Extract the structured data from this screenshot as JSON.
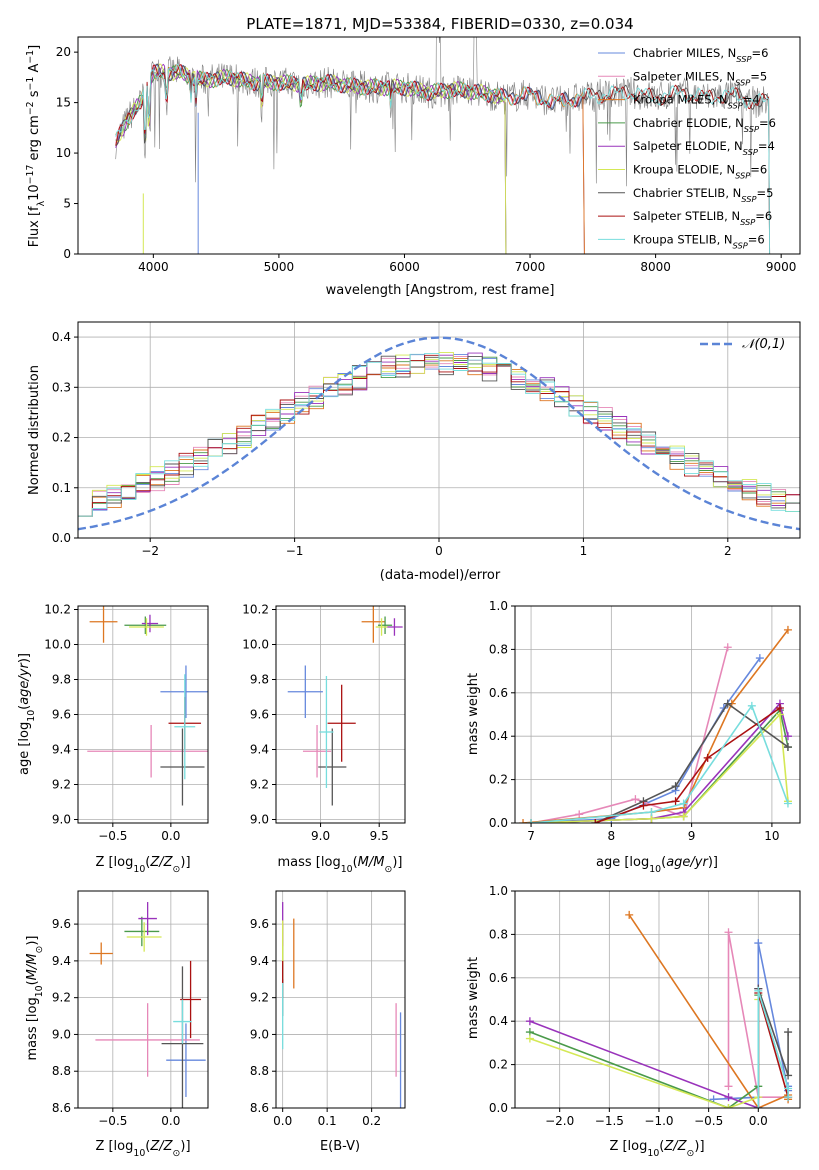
{
  "figure_title": "PLATE=1871, MJD=53384, FIBERID=0330, z=0.034",
  "colors": {
    "Chabrier MILES": "#6688dd",
    "Salpeter MILES": "#e688b8",
    "Kroupa MILES": "#dd7722",
    "Chabrier ELODIE": "#4a9a4a",
    "Salpeter ELODIE": "#9933bb",
    "Kroupa ELODIE": "#d4e855",
    "Chabrier STELIB": "#555555",
    "Salpeter STELIB": "#aa1111",
    "Kroupa STELIB": "#77dddd"
  },
  "chart_data": [
    {
      "id": "spectrum",
      "type": "line",
      "title": "PLATE=1871, MJD=53384, FIBERID=0330, z=0.034",
      "xlabel": "wavelength [Angstrom, rest frame]",
      "ylabel": "Flux [f_λ10^-17 erg cm^-2 s^-1 A^-1]",
      "xlim": [
        3400,
        9150
      ],
      "ylim": [
        0,
        21.5
      ],
      "xticks": [
        "4000",
        "5000",
        "6000",
        "7000",
        "8000",
        "9000"
      ],
      "yticks": [
        "0",
        "5",
        "10",
        "15",
        "20"
      ],
      "legend_position": "top-right",
      "series": [
        {
          "name": "Chabrier MILES, N_SSP=6",
          "end": 7425
        },
        {
          "name": "Salpeter MILES, N_SSP=5",
          "end": 7425
        },
        {
          "name": "Kroupa MILES, N_SSP=4",
          "end": 7425
        },
        {
          "name": "Chabrier ELODIE, N_SSP=6",
          "end": 6800
        },
        {
          "name": "Salpeter ELODIE, N_SSP=4",
          "end": 6800
        },
        {
          "name": "Kroupa ELODIE, N_SSP=6",
          "end": 6800
        },
        {
          "name": "Chabrier STELIB, N_SSP=5",
          "end": 8900
        },
        {
          "name": "Salpeter STELIB, N_SSP=6",
          "end": 8900
        },
        {
          "name": "Kroupa STELIB, N_SSP=6",
          "end": 8900
        }
      ],
      "continuum": [
        [
          3700,
          11.0
        ],
        [
          3800,
          13.5
        ],
        [
          3900,
          15.0
        ],
        [
          4000,
          18.0
        ],
        [
          4200,
          18.0
        ],
        [
          4400,
          17.2
        ],
        [
          4600,
          17.5
        ],
        [
          4800,
          17.0
        ],
        [
          5000,
          17.0
        ],
        [
          5200,
          16.8
        ],
        [
          5400,
          17.0
        ],
        [
          5600,
          16.6
        ],
        [
          5800,
          16.5
        ],
        [
          6000,
          16.5
        ],
        [
          6200,
          16.0
        ],
        [
          6400,
          16.3
        ],
        [
          6600,
          16.0
        ],
        [
          6800,
          15.5
        ],
        [
          7000,
          15.8
        ],
        [
          7200,
          15.0
        ],
        [
          7400,
          15.5
        ],
        [
          7600,
          15.8
        ],
        [
          7800,
          16.0
        ],
        [
          8000,
          15.5
        ],
        [
          8200,
          16.0
        ],
        [
          8400,
          15.5
        ],
        [
          8600,
          15.8
        ],
        [
          8800,
          15.0
        ],
        [
          8900,
          15.2
        ]
      ]
    },
    {
      "id": "residuals",
      "type": "step",
      "xlabel": "(data-model)/error",
      "ylabel": "Normed distribution",
      "xlim": [
        -2.5,
        2.5
      ],
      "ylim": [
        0,
        0.43
      ],
      "xticks": [
        "−2",
        "−1",
        "0",
        "1",
        "2"
      ],
      "yticks": [
        "0.0",
        "0.1",
        "0.2",
        "0.3",
        "0.4"
      ],
      "legend_position": "top-right",
      "legend": [
        "𝒩(0,1)"
      ],
      "bin_width": 0.1
    },
    {
      "id": "age_vs_Z",
      "type": "errorbar",
      "xlabel": "Z [log10(Z/Z⊙)]",
      "ylabel": "age [log10(age/yr)]",
      "xlim": [
        -0.8,
        0.32
      ],
      "ylim": [
        8.98,
        10.22
      ],
      "xticks": [
        "−0.5",
        "0.0"
      ],
      "yticks": [
        "9.0",
        "9.2",
        "9.4",
        "9.6",
        "9.8",
        "10.0",
        "10.2"
      ],
      "points": [
        {
          "s": "Chabrier MILES",
          "x": 0.13,
          "y": 9.73,
          "xe": 0.22,
          "ye": 0.15
        },
        {
          "s": "Salpeter MILES",
          "x": -0.17,
          "y": 9.39,
          "xe": 0.55,
          "ye": 0.15
        },
        {
          "s": "Kroupa MILES",
          "x": -0.58,
          "y": 10.13,
          "xe": 0.12,
          "ye": 0.12
        },
        {
          "s": "Chabrier ELODIE",
          "x": -0.22,
          "y": 10.11,
          "xe": 0.18,
          "ye": 0.05
        },
        {
          "s": "Salpeter ELODIE",
          "x": -0.18,
          "y": 10.12,
          "xe": 0.07,
          "ye": 0.05
        },
        {
          "s": "Kroupa ELODIE",
          "x": -0.21,
          "y": 10.1,
          "xe": 0.15,
          "ye": 0.05
        },
        {
          "s": "Chabrier STELIB",
          "x": 0.1,
          "y": 9.3,
          "xe": 0.19,
          "ye": 0.22
        },
        {
          "s": "Salpeter STELIB",
          "x": 0.12,
          "y": 9.55,
          "xe": 0.14,
          "ye": 0.15
        },
        {
          "s": "Kroupa STELIB",
          "x": 0.12,
          "y": 9.53,
          "xe": 0.09,
          "ye": 0.3
        }
      ]
    },
    {
      "id": "age_vs_mass",
      "type": "errorbar",
      "xlabel": "mass [log10(M/M⊙)]",
      "ylabel": "",
      "xlim": [
        8.62,
        9.72
      ],
      "ylim": [
        8.98,
        10.22
      ],
      "xticks": [
        "9.0",
        "9.5"
      ],
      "yticks": [
        "9.0",
        "9.2",
        "9.4",
        "9.6",
        "9.8",
        "10.0",
        "10.2"
      ],
      "points": [
        {
          "s": "Chabrier MILES",
          "x": 8.87,
          "y": 9.73,
          "xe": 0.15,
          "ye": 0.15
        },
        {
          "s": "Salpeter MILES",
          "x": 8.97,
          "y": 9.39,
          "xe": 0.12,
          "ye": 0.15
        },
        {
          "s": "Kroupa MILES",
          "x": 9.45,
          "y": 10.13,
          "xe": 0.1,
          "ye": 0.12
        },
        {
          "s": "Chabrier ELODIE",
          "x": 9.55,
          "y": 10.11,
          "xe": 0.06,
          "ye": 0.05
        },
        {
          "s": "Salpeter ELODIE",
          "x": 9.63,
          "y": 10.1,
          "xe": 0.07,
          "ye": 0.05
        },
        {
          "s": "Kroupa ELODIE",
          "x": 9.52,
          "y": 10.1,
          "xe": 0.05,
          "ye": 0.05
        },
        {
          "s": "Chabrier STELIB",
          "x": 9.1,
          "y": 9.3,
          "xe": 0.12,
          "ye": 0.22
        },
        {
          "s": "Salpeter STELIB",
          "x": 9.18,
          "y": 9.55,
          "xe": 0.12,
          "ye": 0.22
        },
        {
          "s": "Kroupa STELIB",
          "x": 9.05,
          "y": 9.5,
          "xe": 0.06,
          "ye": 0.32
        }
      ]
    },
    {
      "id": "weight_vs_age",
      "type": "line",
      "xlabel": "age [log10(age/yr)]",
      "ylabel": "mass weight",
      "xlim": [
        6.8,
        10.35
      ],
      "ylim": [
        0,
        1
      ],
      "xticks": [
        "7",
        "8",
        "9",
        "10"
      ],
      "yticks": [
        "0.0",
        "0.2",
        "0.4",
        "0.6",
        "0.8",
        "1.0"
      ],
      "series": [
        {
          "s": "Chabrier MILES",
          "x": [
            7.0,
            8.0,
            8.8,
            9.4,
            9.85
          ],
          "y": [
            0.0,
            0.02,
            0.15,
            0.53,
            0.76
          ]
        },
        {
          "s": "Salpeter MILES",
          "x": [
            7.0,
            7.6,
            8.3,
            8.9,
            9.45
          ],
          "y": [
            0.0,
            0.04,
            0.11,
            0.03,
            0.81
          ]
        },
        {
          "s": "Kroupa MILES",
          "x": [
            6.9,
            8.5,
            8.9,
            9.5,
            10.2
          ],
          "y": [
            0.0,
            0.05,
            0.07,
            0.55,
            0.89
          ]
        },
        {
          "s": "Chabrier ELODIE",
          "x": [
            7.0,
            8.5,
            8.9,
            10.1,
            10.2
          ],
          "y": [
            0.0,
            0.02,
            0.03,
            0.52,
            0.35
          ]
        },
        {
          "s": "Salpeter ELODIE",
          "x": [
            7.0,
            8.5,
            8.9,
            10.1,
            10.2
          ],
          "y": [
            0.0,
            0.02,
            0.05,
            0.55,
            0.4
          ]
        },
        {
          "s": "Kroupa ELODIE",
          "x": [
            7.0,
            8.5,
            8.9,
            10.1,
            10.2
          ],
          "y": [
            0.0,
            0.02,
            0.03,
            0.5,
            0.1
          ]
        },
        {
          "s": "Chabrier STELIB",
          "x": [
            7.8,
            8.4,
            8.8,
            9.45,
            10.2
          ],
          "y": [
            0.0,
            0.1,
            0.17,
            0.55,
            0.35
          ]
        },
        {
          "s": "Salpeter STELIB",
          "x": [
            7.8,
            8.4,
            8.8,
            9.2,
            10.1
          ],
          "y": [
            0.0,
            0.08,
            0.1,
            0.3,
            0.53
          ]
        },
        {
          "s": "Kroupa STELIB",
          "x": [
            7.0,
            8.5,
            8.9,
            9.75,
            10.2
          ],
          "y": [
            0.0,
            0.05,
            0.09,
            0.54,
            0.09
          ]
        }
      ]
    },
    {
      "id": "mass_vs_Z",
      "type": "errorbar",
      "xlabel": "Z [log10(Z/Z⊙)]",
      "ylabel": "mass [log10(M/M⊙)]",
      "xlim": [
        -0.8,
        0.32
      ],
      "ylim": [
        8.6,
        9.78
      ],
      "xticks": [
        "−0.5",
        "0.0"
      ],
      "yticks": [
        "8.6",
        "8.8",
        "9.0",
        "9.2",
        "9.4",
        "9.6"
      ],
      "points": [
        {
          "s": "Chabrier MILES",
          "x": 0.13,
          "y": 8.86,
          "xe": 0.17,
          "ye": 0.2
        },
        {
          "s": "Salpeter MILES",
          "x": -0.2,
          "y": 8.97,
          "xe": 0.45,
          "ye": 0.2
        },
        {
          "s": "Kroupa MILES",
          "x": -0.6,
          "y": 9.44,
          "xe": 0.1,
          "ye": 0.06
        },
        {
          "s": "Chabrier ELODIE",
          "x": -0.25,
          "y": 9.56,
          "xe": 0.15,
          "ye": 0.08
        },
        {
          "s": "Salpeter ELODIE",
          "x": -0.2,
          "y": 9.63,
          "xe": 0.08,
          "ye": 0.09
        },
        {
          "s": "Kroupa ELODIE",
          "x": -0.23,
          "y": 9.53,
          "xe": 0.15,
          "ye": 0.08
        },
        {
          "s": "Chabrier STELIB",
          "x": 0.1,
          "y": 8.95,
          "xe": 0.18,
          "ye": 0.42
        },
        {
          "s": "Salpeter STELIB",
          "x": 0.17,
          "y": 9.19,
          "xe": 0.09,
          "ye": 0.21
        },
        {
          "s": "Kroupa STELIB",
          "x": 0.1,
          "y": 9.07,
          "xe": 0.08,
          "ye": 0.12
        }
      ]
    },
    {
      "id": "mass_vs_ebv",
      "type": "errorbar",
      "xlabel": "E(B-V)",
      "ylabel": "",
      "xlim": [
        -0.015,
        0.275
      ],
      "ylim": [
        8.6,
        9.78
      ],
      "xticks": [
        "0.0",
        "0.1",
        "0.2"
      ],
      "yticks": [
        "8.6",
        "8.8",
        "9.0",
        "9.2",
        "9.4",
        "9.6"
      ],
      "points": [
        {
          "s": "Chabrier MILES",
          "x": 0.265,
          "y": 8.86,
          "xe": 0,
          "ye": 0.26
        },
        {
          "s": "Salpeter MILES",
          "x": 0.255,
          "y": 8.97,
          "xe": 0,
          "ye": 0.2
        },
        {
          "s": "Kroupa MILES",
          "x": 0.025,
          "y": 9.44,
          "xe": 0,
          "ye": 0.19
        },
        {
          "s": "Chabrier ELODIE",
          "x": 0.0,
          "y": 9.4,
          "xe": 0,
          "ye": 0.2
        },
        {
          "s": "Salpeter ELODIE",
          "x": 0.0,
          "y": 9.6,
          "xe": 0,
          "ye": 0.12
        },
        {
          "s": "Kroupa ELODIE",
          "x": 0.0,
          "y": 9.5,
          "xe": 0,
          "ye": 0.12
        },
        {
          "s": "Chabrier STELIB",
          "x": 0.0,
          "y": 9.2,
          "xe": 0,
          "ye": 0.1
        },
        {
          "s": "Salpeter STELIB",
          "x": 0.0,
          "y": 9.3,
          "xe": 0,
          "ye": 0.1
        },
        {
          "s": "Kroupa STELIB",
          "x": 0.0,
          "y": 9.1,
          "xe": 0,
          "ye": 0.18
        }
      ]
    },
    {
      "id": "weight_vs_Z",
      "type": "line",
      "xlabel": "Z [log10(Z/Z⊙)]",
      "ylabel": "mass weight",
      "xlim": [
        -2.45,
        0.42
      ],
      "ylim": [
        0,
        1
      ],
      "xticks": [
        "−2.0",
        "−1.5",
        "−1.0",
        "−0.5",
        "0.0"
      ],
      "yticks": [
        "0.0",
        "0.2",
        "0.4",
        "0.6",
        "0.8",
        "1.0"
      ],
      "series": [
        {
          "s": "Chabrier MILES",
          "x": [
            -0.45,
            0.0,
            0.0,
            0.3,
            0.3
          ],
          "y": [
            0.04,
            0.05,
            0.76,
            0.08,
            0.1
          ]
        },
        {
          "s": "Salpeter MILES",
          "x": [
            -0.3,
            -0.3,
            0.0,
            0.3
          ],
          "y": [
            0.1,
            0.81,
            0.05,
            0.05
          ]
        },
        {
          "s": "Kroupa MILES",
          "x": [
            -1.3,
            0.0,
            0.3,
            0.3
          ],
          "y": [
            0.89,
            0.0,
            0.06,
            0.04
          ]
        },
        {
          "s": "Chabrier ELODIE",
          "x": [
            -2.3,
            -0.3,
            0.0,
            0.0
          ],
          "y": [
            0.35,
            0.0,
            0.1,
            0.52
          ]
        },
        {
          "s": "Salpeter ELODIE",
          "x": [
            -2.3,
            -0.3,
            0.0,
            0.0
          ],
          "y": [
            0.4,
            0.05,
            0.0,
            0.55
          ]
        },
        {
          "s": "Kroupa ELODIE",
          "x": [
            -2.3,
            -0.3,
            0.0,
            0.0
          ],
          "y": [
            0.32,
            0.0,
            0.05,
            0.5
          ]
        },
        {
          "s": "Chabrier STELIB",
          "x": [
            0.0,
            0.0,
            0.3,
            0.3
          ],
          "y": [
            0.0,
            0.55,
            0.15,
            0.35
          ]
        },
        {
          "s": "Salpeter STELIB",
          "x": [
            0.0,
            0.0,
            0.3
          ],
          "y": [
            0.0,
            0.53,
            0.05
          ]
        },
        {
          "s": "Kroupa STELIB",
          "x": [
            0.0,
            0.0,
            0.3,
            0.3
          ],
          "y": [
            0.0,
            0.54,
            0.09,
            0.05
          ]
        }
      ]
    }
  ]
}
